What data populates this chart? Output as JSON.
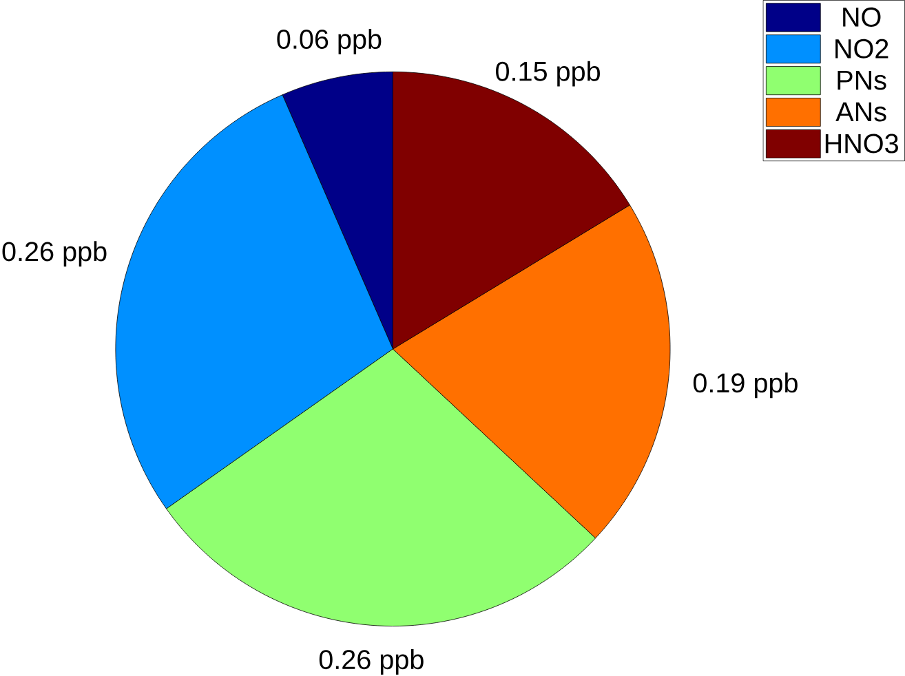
{
  "chart_data": {
    "type": "pie",
    "categories": [
      "NO",
      "NO2",
      "PNs",
      "ANs",
      "HNO3"
    ],
    "values": [
      0.06,
      0.26,
      0.26,
      0.19,
      0.15
    ],
    "colors": [
      "#000088",
      "#0090ff",
      "#90ff70",
      "#ff7000",
      "#800000"
    ],
    "value_labels": [
      "0.06 ppb",
      "0.26 ppb",
      "0.26 ppb",
      "0.19 ppb",
      "0.15 ppb"
    ],
    "legend": "top right"
  }
}
